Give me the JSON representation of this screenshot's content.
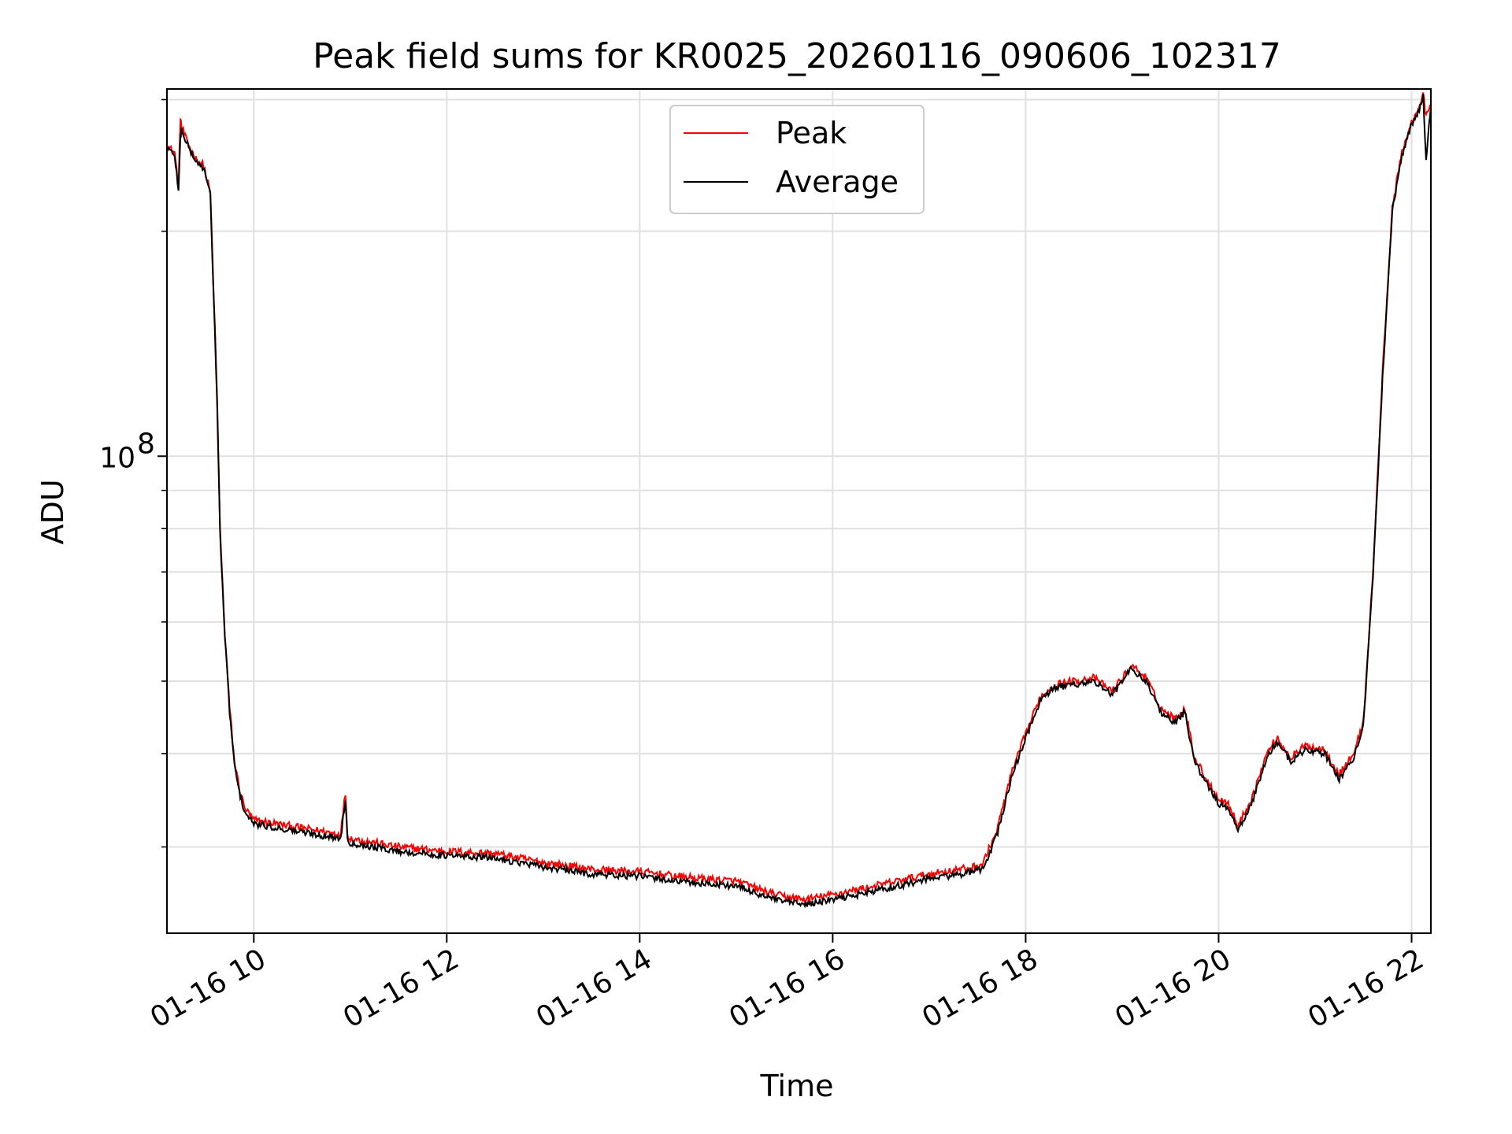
{
  "chart_data": {
    "type": "line",
    "title": "Peak field sums for KR0025_20260116_090606_102317",
    "xlabel": "Time",
    "ylabel": "ADU",
    "yscale": "log",
    "ytick_labels": [
      {
        "value": 100000000,
        "base": "10",
        "exp": "8"
      }
    ],
    "y_minor_ticks": [
      40000000,
      50000000,
      60000000,
      70000000,
      80000000,
      90000000
    ],
    "xtick_labels": [
      "01-16 10",
      "01-16 12",
      "01-16 14",
      "01-16 16",
      "01-16 18",
      "01-16 20",
      "01-16 22"
    ],
    "xtick_hours": [
      10,
      12,
      14,
      16,
      18,
      20,
      22
    ],
    "xlim_hours": [
      9.1,
      22.2
    ],
    "ylim": [
      23000000,
      310000000
    ],
    "grid": true,
    "legend_position": "top-center",
    "colors": {
      "peak": "#ff0000",
      "average": "#000000",
      "grid": "#e0e0e0"
    },
    "series": [
      {
        "name": "Peak",
        "color": "#ff0000",
        "x_hours": [
          9.1,
          9.13,
          9.18,
          9.22,
          9.24,
          9.25,
          9.27,
          9.3,
          9.35,
          9.4,
          9.48,
          9.55,
          9.62,
          9.65,
          9.7,
          9.75,
          9.8,
          9.85,
          9.9,
          9.95,
          10.0,
          10.5,
          10.9,
          10.95,
          10.97,
          11.0,
          11.5,
          12.0,
          12.5,
          13.0,
          13.5,
          14.0,
          14.5,
          15.0,
          15.4,
          15.7,
          16.0,
          16.5,
          17.0,
          17.4,
          17.55,
          17.7,
          17.85,
          18.0,
          18.15,
          18.3,
          18.5,
          18.7,
          18.9,
          19.1,
          19.25,
          19.4,
          19.55,
          19.65,
          19.75,
          19.9,
          20.0,
          20.1,
          20.2,
          20.35,
          20.5,
          20.6,
          20.75,
          20.9,
          21.1,
          21.25,
          21.4,
          21.5,
          21.6,
          21.7,
          21.8,
          21.9,
          22.0,
          22.08,
          22.12,
          22.15,
          22.2
        ],
        "values": [
          262000000,
          258000000,
          255000000,
          228000000,
          285000000,
          276000000,
          272000000,
          265000000,
          257000000,
          250000000,
          245000000,
          225000000,
          120000000,
          80000000,
          58000000,
          46000000,
          39000000,
          36000000,
          34000000,
          33200000,
          32600000,
          31800000,
          31200000,
          35500000,
          31200000,
          30800000,
          30000000,
          29600000,
          29400000,
          28600000,
          28000000,
          27800000,
          27300000,
          27000000,
          25900000,
          25500000,
          25900000,
          26700000,
          27600000,
          28100000,
          28400000,
          31500000,
          37500000,
          42500000,
          47500000,
          49500000,
          50000000,
          50500000,
          48500000,
          52500000,
          50500000,
          46000000,
          44500000,
          46000000,
          39500000,
          36500000,
          34800000,
          34300000,
          32000000,
          35000000,
          40000000,
          42000000,
          39500000,
          41000000,
          40500000,
          37500000,
          40000000,
          44000000,
          70000000,
          130000000,
          215000000,
          255000000,
          280000000,
          292000000,
          305000000,
          285000000,
          295000000
        ]
      },
      {
        "name": "Average",
        "color": "#000000",
        "x_hours": [
          9.1,
          9.13,
          9.18,
          9.22,
          9.24,
          9.25,
          9.27,
          9.3,
          9.35,
          9.4,
          9.48,
          9.55,
          9.62,
          9.65,
          9.7,
          9.75,
          9.8,
          9.85,
          9.9,
          9.95,
          10.0,
          10.5,
          10.9,
          10.95,
          10.97,
          11.0,
          11.5,
          12.0,
          12.5,
          13.0,
          13.5,
          14.0,
          14.5,
          15.0,
          15.4,
          15.7,
          16.0,
          16.5,
          17.0,
          17.4,
          17.55,
          17.7,
          17.85,
          18.0,
          18.15,
          18.3,
          18.5,
          18.7,
          18.9,
          19.1,
          19.25,
          19.4,
          19.55,
          19.65,
          19.75,
          19.9,
          20.0,
          20.1,
          20.2,
          20.35,
          20.5,
          20.6,
          20.75,
          20.9,
          21.1,
          21.25,
          21.4,
          21.5,
          21.6,
          21.7,
          21.8,
          21.9,
          22.0,
          22.08,
          22.12,
          22.15,
          22.2
        ],
        "values": [
          260000000,
          256000000,
          253000000,
          226000000,
          268000000,
          274000000,
          270000000,
          263000000,
          255000000,
          248000000,
          243000000,
          223000000,
          118000000,
          79000000,
          57500000,
          45500000,
          38500000,
          35500000,
          33600000,
          32800000,
          32200000,
          31400000,
          30800000,
          34800000,
          30800000,
          30400000,
          29600000,
          29200000,
          29000000,
          28200000,
          27600000,
          27400000,
          26900000,
          26600000,
          25500000,
          25100000,
          25500000,
          26300000,
          27200000,
          27700000,
          28000000,
          31000000,
          37000000,
          42000000,
          47000000,
          49000000,
          49500000,
          50000000,
          48000000,
          52000000,
          50000000,
          45500000,
          44000000,
          45500000,
          39000000,
          36000000,
          34300000,
          33800000,
          31500000,
          34500000,
          39500000,
          41500000,
          39000000,
          40500000,
          40000000,
          37000000,
          39500000,
          43500000,
          69000000,
          128000000,
          213000000,
          253000000,
          278000000,
          290000000,
          303000000,
          250000000,
          293000000
        ]
      }
    ]
  }
}
